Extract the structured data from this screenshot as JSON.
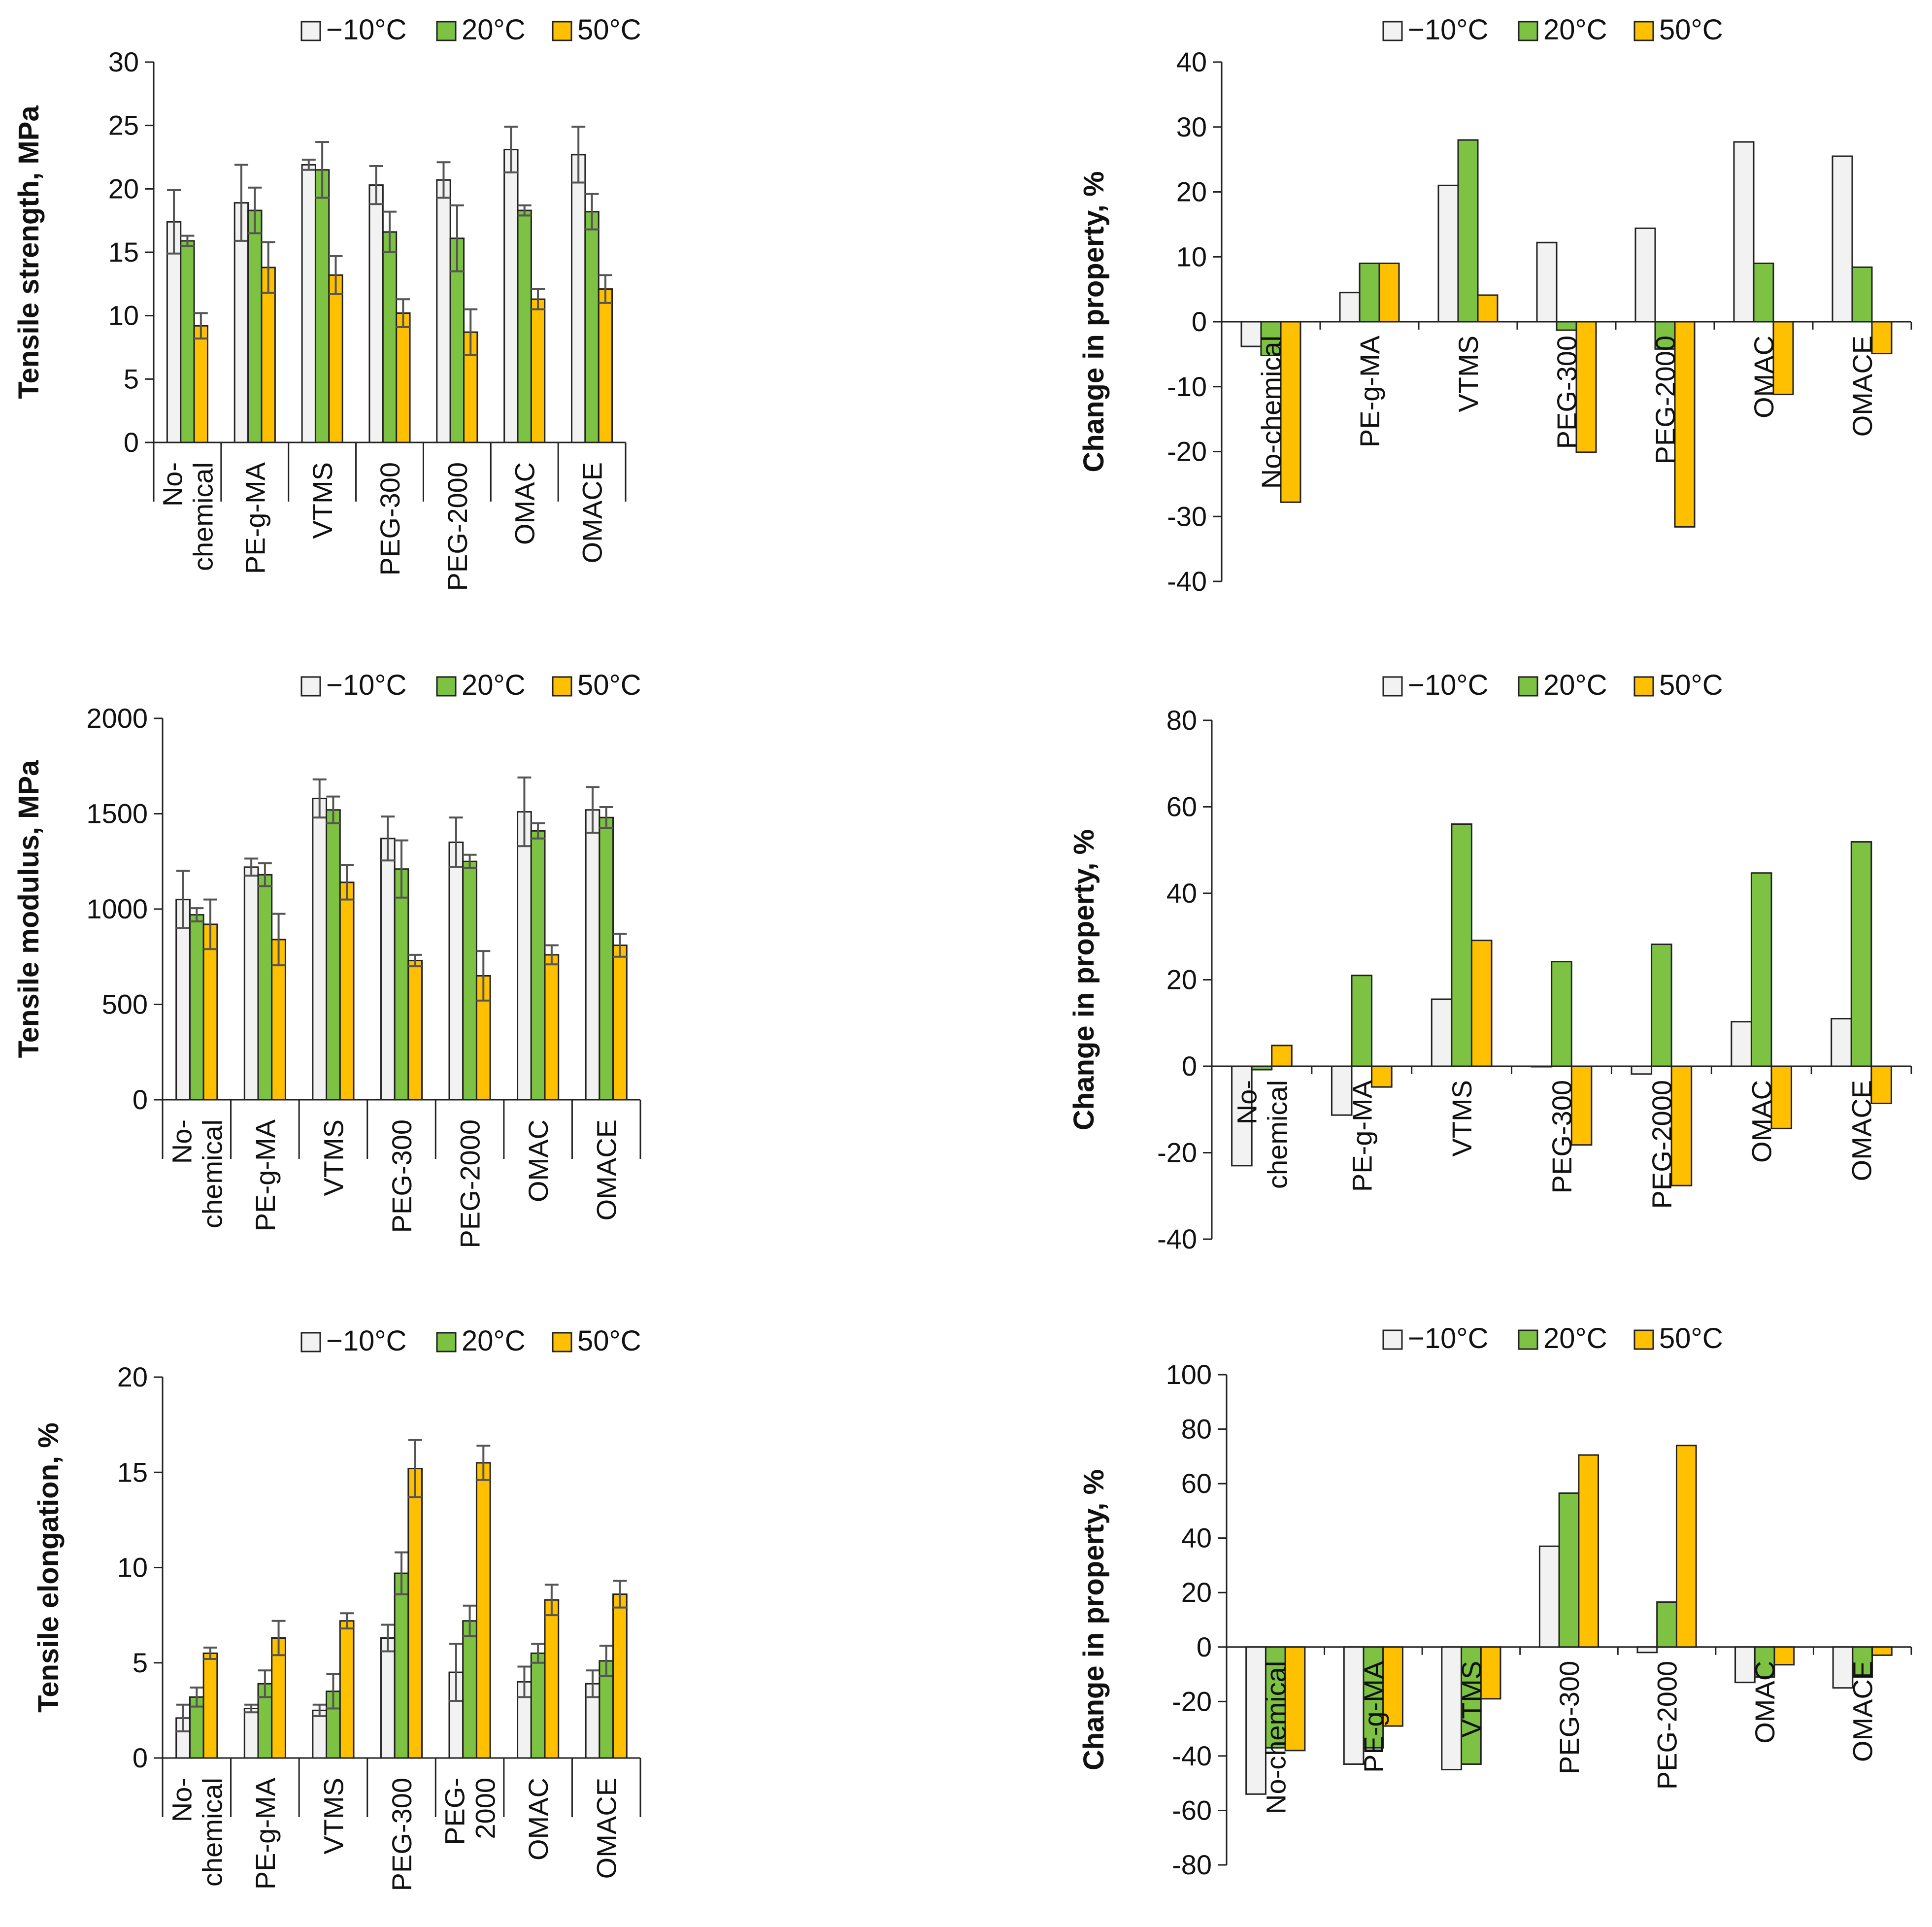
{
  "figure_title": "",
  "colors": {
    "neg10": "#F2F2F2",
    "pos20": "#7DC242",
    "pos50": "#FFC000",
    "edge": "#222222",
    "err": "#555555"
  },
  "legend": [
    "−10°C",
    "20°C",
    "50°C"
  ],
  "chart_data": [
    {
      "id": "p1",
      "type": "bar",
      "title": "",
      "ylabel": "Tensile strength, MPa",
      "ylim": [
        0,
        30
      ],
      "yticks": [
        0,
        5,
        10,
        15,
        20,
        25,
        30
      ],
      "categories": [
        [
          "No-",
          "chemical"
        ],
        [
          "PE-g-MA"
        ],
        [
          "VTMS"
        ],
        [
          "PEG-300"
        ],
        [
          "PEG-2000"
        ],
        [
          "OMAC"
        ],
        [
          "OMACE"
        ]
      ],
      "series": [
        {
          "name": "−10°C",
          "values": [
            17.4,
            18.9,
            21.9,
            20.3,
            20.7,
            23.1,
            22.7
          ],
          "errors": [
            2.5,
            3.0,
            0.4,
            1.5,
            1.4,
            1.8,
            2.2
          ]
        },
        {
          "name": "20°C",
          "values": [
            15.9,
            18.3,
            21.5,
            16.6,
            16.1,
            18.3,
            18.2
          ],
          "errors": [
            0.4,
            1.8,
            2.2,
            1.6,
            2.6,
            0.4,
            1.4
          ]
        },
        {
          "name": "50°C",
          "values": [
            9.2,
            13.8,
            13.2,
            10.2,
            8.7,
            11.3,
            12.1
          ],
          "errors": [
            1.0,
            2.0,
            1.5,
            1.1,
            1.8,
            0.8,
            1.1
          ]
        }
      ]
    },
    {
      "id": "p2",
      "type": "bar",
      "title": "",
      "ylabel": "Change in property, %",
      "ylim": [
        -40,
        40
      ],
      "yticks": [
        -40,
        -30,
        -20,
        -10,
        0,
        10,
        20,
        30,
        40
      ],
      "categories": [
        [
          "No-chemical"
        ],
        [
          "PE-g-MA"
        ],
        [
          "VTMS"
        ],
        [
          "PEG-300"
        ],
        [
          "PEG-2000"
        ],
        [
          "OMAC"
        ],
        [
          "OMACE"
        ]
      ],
      "series": [
        {
          "name": "−10°C",
          "values": [
            -3.8,
            4.5,
            21.0,
            12.2,
            14.4,
            27.7,
            25.5
          ]
        },
        {
          "name": "20°C",
          "values": [
            -5.2,
            9.0,
            28.0,
            -1.3,
            -4.2,
            9.0,
            8.4
          ]
        },
        {
          "name": "50°C",
          "values": [
            -27.8,
            9.0,
            4.1,
            -20.1,
            -31.6,
            -11.2,
            -4.9
          ]
        }
      ]
    },
    {
      "id": "p3",
      "type": "bar",
      "title": "",
      "ylabel": "Tensile modulus, MPa",
      "ylim": [
        0,
        2000
      ],
      "yticks": [
        0,
        500,
        1000,
        1500,
        2000
      ],
      "categories": [
        [
          "No-",
          "chemical"
        ],
        [
          "PE-g-MA"
        ],
        [
          "VTMS"
        ],
        [
          "PEG-300"
        ],
        [
          "PEG-2000"
        ],
        [
          "OMAC"
        ],
        [
          "OMACE"
        ]
      ],
      "series": [
        {
          "name": "−10°C",
          "values": [
            1050,
            1220,
            1580,
            1370,
            1350,
            1510,
            1520
          ],
          "errors": [
            150,
            45,
            100,
            115,
            130,
            180,
            120
          ]
        },
        {
          "name": "20°C",
          "values": [
            970,
            1180,
            1520,
            1210,
            1250,
            1410,
            1480
          ],
          "errors": [
            35,
            60,
            70,
            150,
            35,
            40,
            55
          ]
        },
        {
          "name": "50°C",
          "values": [
            920,
            840,
            1140,
            730,
            650,
            760,
            810
          ],
          "errors": [
            130,
            135,
            90,
            30,
            130,
            50,
            60
          ]
        }
      ]
    },
    {
      "id": "p4",
      "type": "bar",
      "title": "",
      "ylabel": "Change in property, %",
      "ylim": [
        -40,
        80
      ],
      "yticks": [
        -40,
        -20,
        0,
        20,
        40,
        60,
        80
      ],
      "categories": [
        [
          "No-",
          "chemical"
        ],
        [
          "PE-g-MA"
        ],
        [
          "VTMS"
        ],
        [
          "PEG-300"
        ],
        [
          "PEG-2000"
        ],
        [
          "OMAC"
        ],
        [
          "OMACE"
        ]
      ],
      "series": [
        {
          "name": "−10°C",
          "values": [
            -23.0,
            -11.3,
            15.5,
            0.0,
            -1.8,
            10.3,
            11.0
          ]
        },
        {
          "name": "20°C",
          "values": [
            -0.8,
            21.0,
            56.0,
            24.2,
            28.2,
            44.7,
            51.9
          ]
        },
        {
          "name": "50°C",
          "values": [
            4.8,
            -4.8,
            29.1,
            -18.2,
            -27.6,
            -14.4,
            -8.6
          ]
        }
      ]
    },
    {
      "id": "p5",
      "type": "bar",
      "title": "",
      "ylabel": "Tensile elongation, %",
      "ylim": [
        0,
        20
      ],
      "yticks": [
        0,
        5,
        10,
        15,
        20
      ],
      "categories": [
        [
          "No-",
          "chemical"
        ],
        [
          "PE-g-MA"
        ],
        [
          "VTMS"
        ],
        [
          "PEG-300"
        ],
        [
          "PEG-",
          "2000"
        ],
        [
          "OMAC"
        ],
        [
          "OMACE"
        ]
      ],
      "series": [
        {
          "name": "−10°C",
          "values": [
            2.1,
            2.6,
            2.5,
            6.3,
            4.5,
            4.0,
            3.9
          ],
          "errors": [
            0.7,
            0.2,
            0.3,
            0.7,
            1.5,
            0.8,
            0.7
          ]
        },
        {
          "name": "20°C",
          "values": [
            3.2,
            3.9,
            3.5,
            9.7,
            7.2,
            5.5,
            5.1
          ],
          "errors": [
            0.5,
            0.7,
            0.9,
            1.1,
            0.8,
            0.5,
            0.8
          ]
        },
        {
          "name": "50°C",
          "values": [
            5.5,
            6.3,
            7.2,
            15.2,
            15.5,
            8.3,
            8.6
          ],
          "errors": [
            0.3,
            0.9,
            0.4,
            1.5,
            0.9,
            0.8,
            0.7
          ]
        }
      ]
    },
    {
      "id": "p6",
      "type": "bar",
      "title": "",
      "ylabel": "Change in property, %",
      "ylim": [
        -80,
        100
      ],
      "yticks": [
        -80,
        -60,
        -40,
        -20,
        0,
        20,
        40,
        60,
        80,
        100
      ],
      "categories": [
        [
          "No-chemical"
        ],
        [
          "PE-g-MA"
        ],
        [
          "VTMS"
        ],
        [
          "PEG-300"
        ],
        [
          "PEG-2000"
        ],
        [
          "OMAC"
        ],
        [
          "OMACE"
        ]
      ],
      "series": [
        {
          "name": "−10°C",
          "values": [
            -54.0,
            -43.0,
            -45.0,
            37.0,
            -2.0,
            -13.0,
            -15.0
          ]
        },
        {
          "name": "20°C",
          "values": [
            -37.0,
            -37.0,
            -43.0,
            56.5,
            16.5,
            -11.0,
            -11.0
          ]
        },
        {
          "name": "50°C",
          "values": [
            -38.0,
            -29.0,
            -19.0,
            70.5,
            74.0,
            -6.5,
            -3.0
          ]
        }
      ]
    }
  ]
}
